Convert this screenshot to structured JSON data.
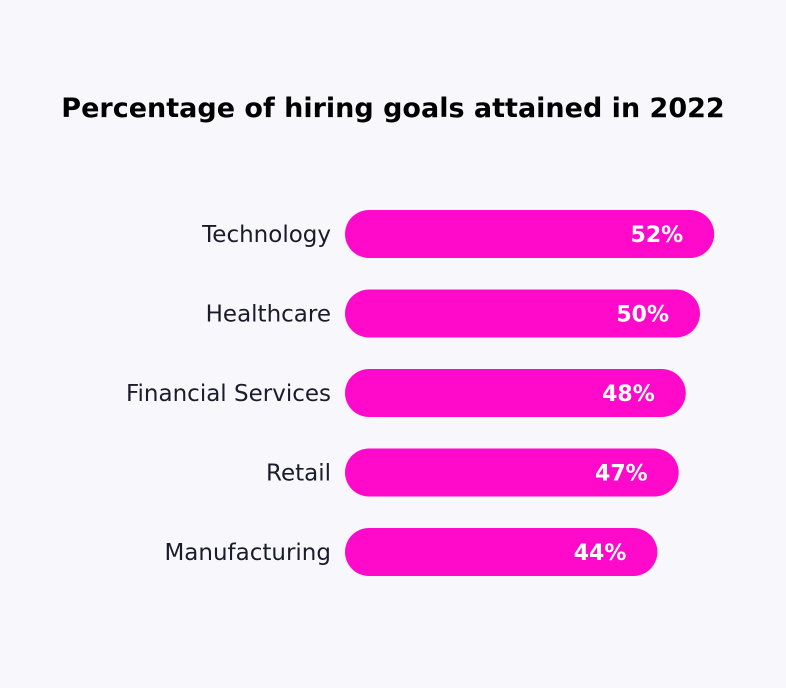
{
  "chart_data": {
    "type": "bar",
    "orientation": "horizontal",
    "title": "Percentage of hiring goals attained in 2022",
    "categories": [
      "Technology",
      "Healthcare",
      "Financial Services",
      "Retail",
      "Manufacturing"
    ],
    "values": [
      52,
      50,
      48,
      47,
      44
    ],
    "value_labels": [
      "52%",
      "50%",
      "48%",
      "47%",
      "44%"
    ],
    "unit": "%",
    "xlabel": "",
    "ylabel": "",
    "grid": false,
    "legend": "none"
  },
  "colors": {
    "bar": "#ff0acb",
    "background": "#f8f7fc",
    "title": "#000000",
    "category_text": "#1b1b2b",
    "value_text": "#ffffff"
  }
}
